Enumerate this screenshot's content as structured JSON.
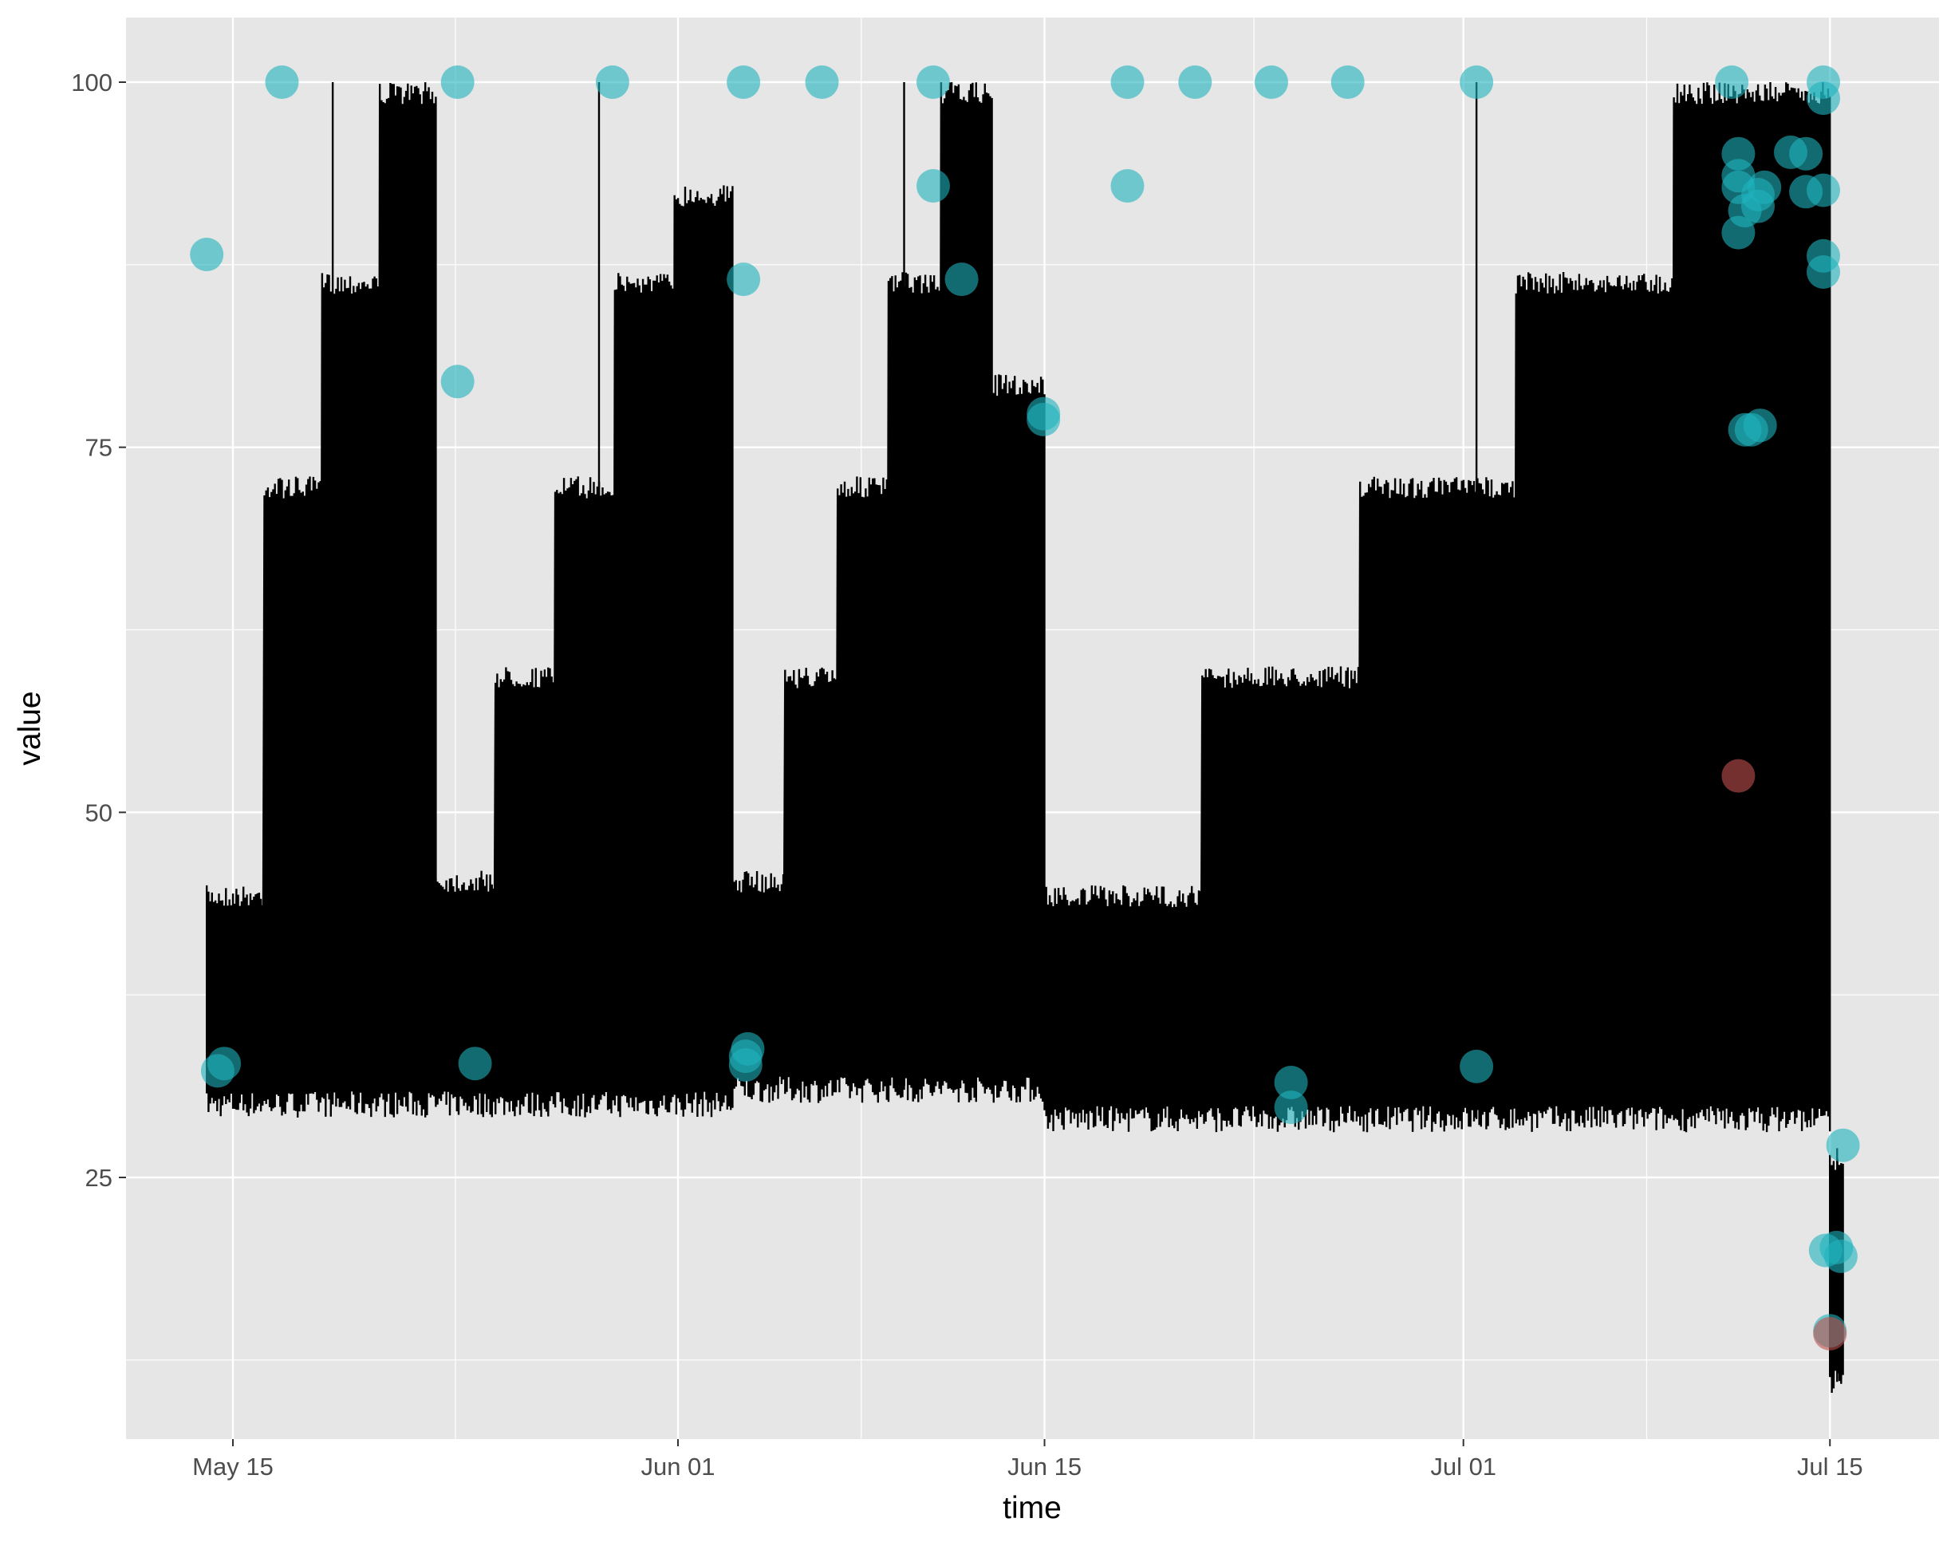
{
  "chart_data": {
    "type": "line",
    "title": "",
    "xlabel": "time",
    "ylabel": "value",
    "xlim": [
      "2025-05-12",
      "2025-07-17"
    ],
    "ylim": [
      7,
      104
    ],
    "x_ticks": [
      "2025-05-15",
      "2025-06-01",
      "2025-06-15",
      "2025-07-01",
      "2025-07-15"
    ],
    "x_tick_labels": [
      "May 15",
      "Jun 01",
      "Jun 15",
      "Jul 01",
      "Jul 15"
    ],
    "y_ticks": [
      25,
      50,
      75,
      100
    ],
    "y_tick_labels": [
      "25",
      "50",
      "75",
      "100"
    ],
    "grid": true,
    "legend": "none",
    "colors": {
      "panel": "#e6e6e6",
      "grid": "#ffffff",
      "line": "#000000",
      "point_teal": "#20b2be",
      "point_red": "#c0504d"
    },
    "series": [
      {
        "type": "line",
        "color": "#000000",
        "segments": [
          {
            "start": "2025-05-14 00:00",
            "end": "2025-05-22 18:00",
            "low": 30,
            "high": [
              45,
              73,
              87,
              100
            ],
            "peak": 100
          },
          {
            "start": "2025-05-22 18:00",
            "end": "2025-06-03 02:00",
            "low": 30,
            "high": [
              46,
              60,
              73,
              87,
              93
            ],
            "peak": 100
          },
          {
            "start": "2025-06-03 02:00",
            "end": "2025-06-15 00:00",
            "low": 31,
            "high": [
              46,
              60,
              73,
              87,
              100,
              80
            ],
            "peak": 100
          },
          {
            "start": "2025-06-15 00:00",
            "end": "2025-07-15 00:00",
            "low": 29,
            "high": [
              45,
              60,
              73,
              87,
              100
            ],
            "peak": 100
          },
          {
            "start": "2025-07-15 00:00",
            "end": "2025-07-15 12:00",
            "low": 11,
            "high": [
              27
            ],
            "peak": 27
          }
        ]
      },
      {
        "type": "scatter",
        "name": "",
        "color": "#20b2be",
        "points": [
          {
            "x": "2025-05-14 00:00",
            "y": 88.2
          },
          {
            "x": "2025-05-14 10:00",
            "y": 32.3
          },
          {
            "x": "2025-05-14 16:00",
            "y": 32.8
          },
          {
            "x": "2025-05-16 21:00",
            "y": 100
          },
          {
            "x": "2025-05-23 14:00",
            "y": 100
          },
          {
            "x": "2025-05-23 14:00",
            "y": 79.5
          },
          {
            "x": "2025-05-24 06:00",
            "y": 32.8
          },
          {
            "x": "2025-05-29 12:00",
            "y": 100
          },
          {
            "x": "2025-06-03 12:00",
            "y": 100
          },
          {
            "x": "2025-06-03 12:00",
            "y": 86.5
          },
          {
            "x": "2025-06-03 14:00",
            "y": 33.3
          },
          {
            "x": "2025-06-03 14:00",
            "y": 32.7
          },
          {
            "x": "2025-06-03 16:00",
            "y": 33.8
          },
          {
            "x": "2025-06-06 12:00",
            "y": 100
          },
          {
            "x": "2025-06-10 18:00",
            "y": 100
          },
          {
            "x": "2025-06-10 18:00",
            "y": 92.9
          },
          {
            "x": "2025-06-11 20:00",
            "y": 86.5
          },
          {
            "x": "2025-06-14 23:00",
            "y": 77.3
          },
          {
            "x": "2025-06-14 23:00",
            "y": 76.9
          },
          {
            "x": "2025-06-18 04:00",
            "y": 100
          },
          {
            "x": "2025-06-18 04:00",
            "y": 92.9
          },
          {
            "x": "2025-06-20 18:00",
            "y": 100
          },
          {
            "x": "2025-06-23 16:00",
            "y": 100
          },
          {
            "x": "2025-06-24 10:00",
            "y": 31.5
          },
          {
            "x": "2025-06-24 10:00",
            "y": 29.8
          },
          {
            "x": "2025-06-26 14:00",
            "y": 100
          },
          {
            "x": "2025-07-01 12:00",
            "y": 100
          },
          {
            "x": "2025-07-01 12:00",
            "y": 32.6
          },
          {
            "x": "2025-07-11 06:00",
            "y": 100
          },
          {
            "x": "2025-07-11 12:00",
            "y": 95.1
          },
          {
            "x": "2025-07-11 12:00",
            "y": 93.6
          },
          {
            "x": "2025-07-11 12:00",
            "y": 92.8
          },
          {
            "x": "2025-07-11 12:00",
            "y": 89.7
          },
          {
            "x": "2025-07-11 18:00",
            "y": 91.2
          },
          {
            "x": "2025-07-11 18:00",
            "y": 76.2
          },
          {
            "x": "2025-07-12 00:00",
            "y": 76.2
          },
          {
            "x": "2025-07-12 06:00",
            "y": 91.5
          },
          {
            "x": "2025-07-12 06:00",
            "y": 92.3
          },
          {
            "x": "2025-07-12 08:00",
            "y": 76.5
          },
          {
            "x": "2025-07-12 12:00",
            "y": 92.8
          },
          {
            "x": "2025-07-13 12:00",
            "y": 95.2
          },
          {
            "x": "2025-07-14 02:00",
            "y": 95.1
          },
          {
            "x": "2025-07-14 02:00",
            "y": 92.5
          },
          {
            "x": "2025-07-14 18:00",
            "y": 100
          },
          {
            "x": "2025-07-14 18:00",
            "y": 98.9
          },
          {
            "x": "2025-07-14 18:00",
            "y": 92.6
          },
          {
            "x": "2025-07-14 18:00",
            "y": 88.1
          },
          {
            "x": "2025-07-14 18:00",
            "y": 87.0
          },
          {
            "x": "2025-07-14 20:00",
            "y": 20.0
          },
          {
            "x": "2025-07-15 06:00",
            "y": 20.2
          },
          {
            "x": "2025-07-15 10:00",
            "y": 19.6
          },
          {
            "x": "2025-07-15 12:00",
            "y": 27.2
          },
          {
            "x": "2025-07-15 00:00",
            "y": 14.5
          }
        ]
      },
      {
        "type": "scatter",
        "name": "",
        "color": "#c0504d",
        "points": [
          {
            "x": "2025-07-11 12:00",
            "y": 52.5
          },
          {
            "x": "2025-07-15 00:00",
            "y": 14.3
          }
        ]
      }
    ]
  }
}
